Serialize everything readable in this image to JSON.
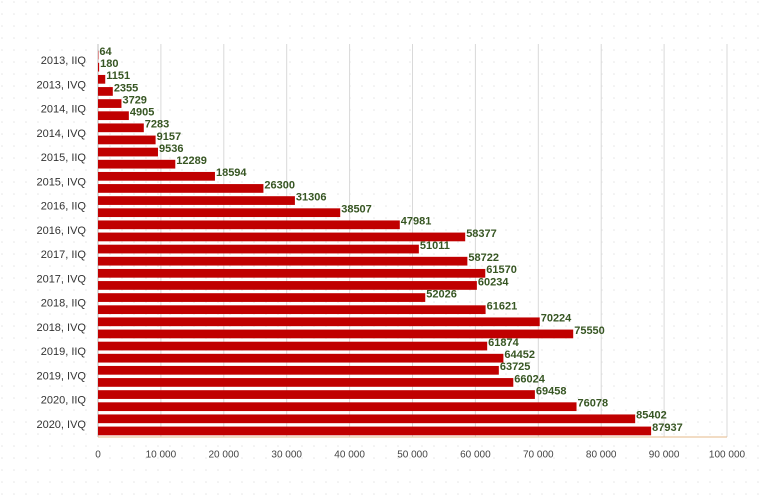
{
  "chart_data": {
    "type": "hbar",
    "categories": [
      null,
      "2013, IIQ",
      null,
      "2013, IVQ",
      null,
      "2014, IIQ",
      null,
      "2014, IVQ",
      null,
      "2015, IIQ",
      null,
      "2015, IVQ",
      null,
      "2016, IIQ",
      null,
      "2016, IVQ",
      null,
      "2017, IIQ",
      null,
      "2017, IVQ",
      null,
      "2018, IIQ",
      null,
      "2018, IVQ",
      null,
      "2019, IIQ",
      null,
      "2019, IVQ",
      null,
      "2020, IIQ",
      null,
      "2020, IVQ"
    ],
    "values": [
      64,
      180,
      1151,
      2355,
      3729,
      4905,
      7283,
      9157,
      9536,
      12289,
      18594,
      26300,
      31306,
      38507,
      47981,
      58377,
      51011,
      58722,
      61570,
      60234,
      52026,
      61621,
      70224,
      75550,
      61874,
      64452,
      63725,
      66024,
      69458,
      76078,
      85402,
      87937
    ],
    "color": "#c00000",
    "xlim": [
      0,
      100000
    ],
    "xticks": [
      0,
      {
        "value": 10000,
        "label": "10 000"
      },
      {
        "value": 20000,
        "label": "20 000"
      },
      {
        "value": 30000,
        "label": "30 000"
      },
      {
        "value": 40000,
        "label": "40 000"
      },
      {
        "value": 50000,
        "label": "50 000"
      },
      {
        "value": 60000,
        "label": "60 000"
      },
      {
        "value": 70000,
        "label": "70 000"
      },
      {
        "value": 80000,
        "label": "80 000"
      },
      {
        "value": 90000,
        "label": "90 000"
      },
      {
        "value": 100000,
        "label": "100 000"
      }
    ],
    "grid": true
  }
}
